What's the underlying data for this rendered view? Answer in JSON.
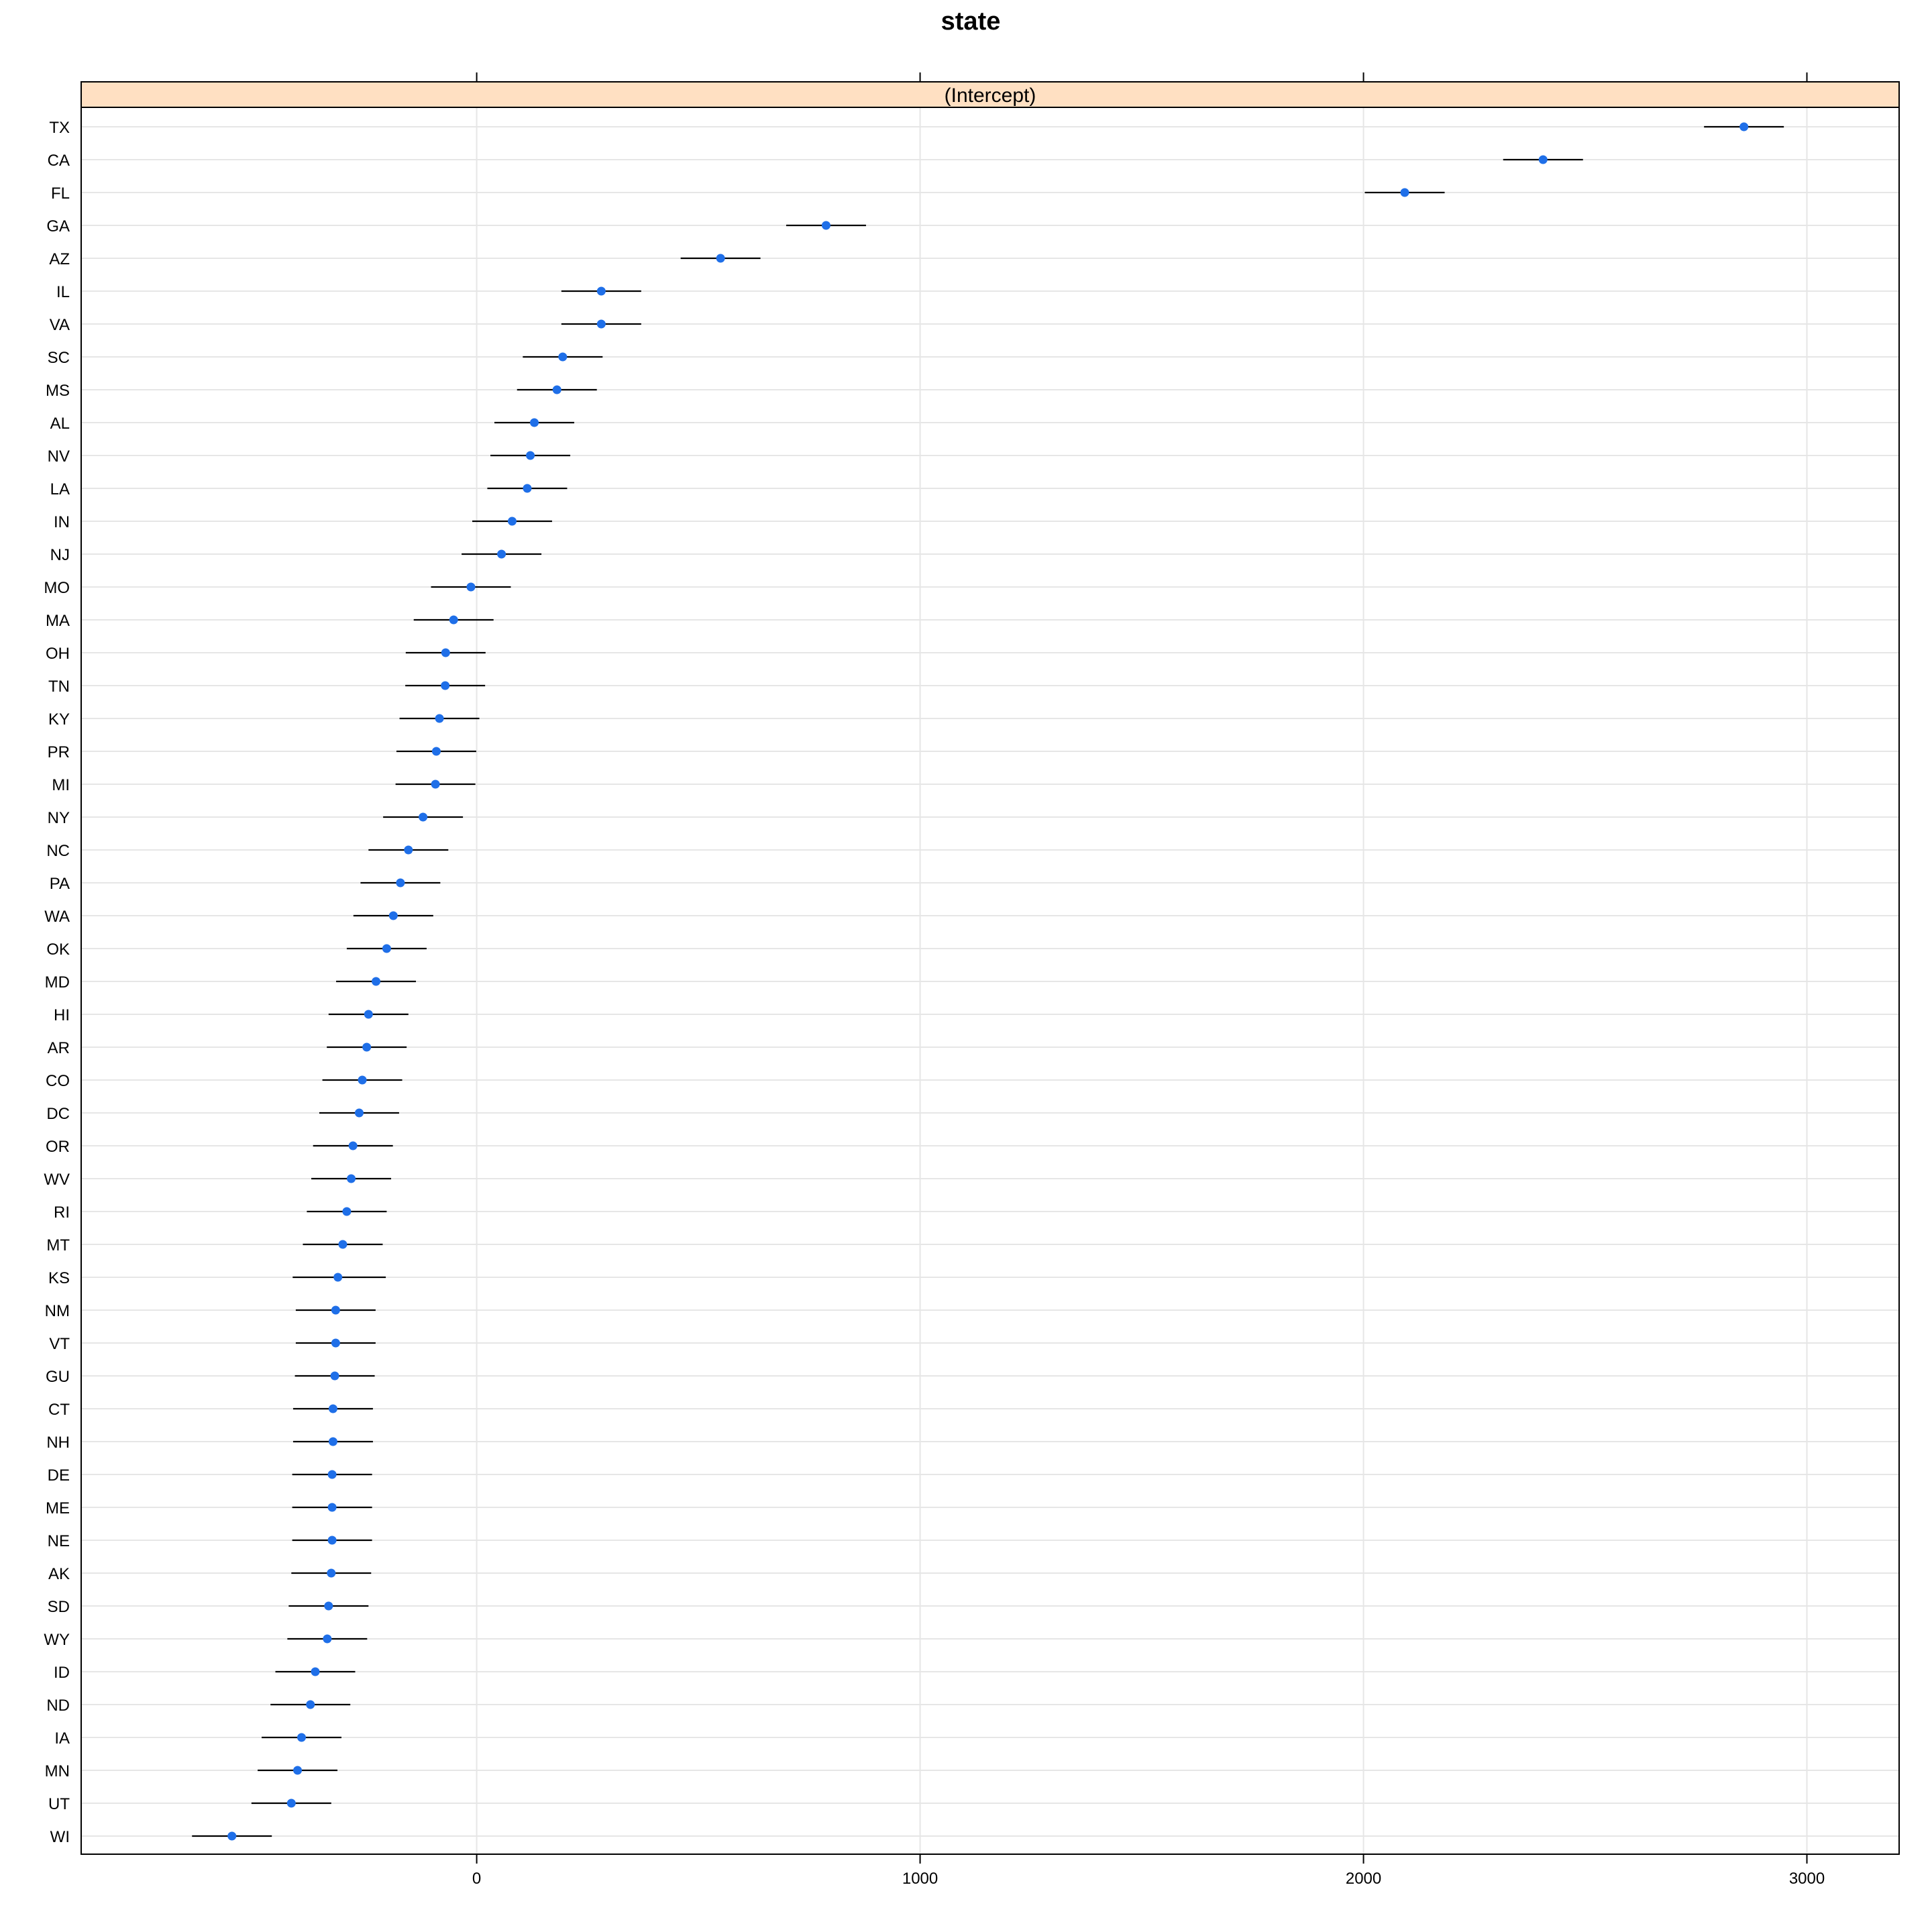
{
  "chart_data": {
    "type": "scatter",
    "title": "state",
    "panel_label": "(Intercept)",
    "xlabel": "",
    "ylabel": "",
    "xlim": [
      -892,
      3208
    ],
    "x_ticks": [
      0,
      1000,
      2000,
      3000
    ],
    "x_tick_labels": [
      "0",
      "1000",
      "2000",
      "3000"
    ],
    "grid": true,
    "colors": {
      "point": "#1f6fe8",
      "interval": "#000000",
      "grid": "#e6e6e6",
      "strip_fill": "#ffe0c2",
      "frame": "#000000"
    },
    "categories": [
      "TX",
      "CA",
      "FL",
      "GA",
      "AZ",
      "IL",
      "VA",
      "SC",
      "MS",
      "AL",
      "NV",
      "LA",
      "IN",
      "NJ",
      "MO",
      "MA",
      "OH",
      "TN",
      "KY",
      "PR",
      "MI",
      "NY",
      "NC",
      "PA",
      "WA",
      "OK",
      "MD",
      "HI",
      "AR",
      "CO",
      "DC",
      "OR",
      "WV",
      "RI",
      "MT",
      "KS",
      "NM",
      "VT",
      "GU",
      "CT",
      "NH",
      "DE",
      "ME",
      "NE",
      "AK",
      "SD",
      "WY",
      "ID",
      "ND",
      "IA",
      "MN",
      "UT",
      "WI"
    ],
    "values": [
      2858,
      2405,
      2093,
      788,
      550,
      281,
      281,
      194,
      181,
      130,
      121,
      114,
      80,
      56,
      -13,
      -52,
      -70,
      -71,
      -84,
      -91,
      -93,
      -121,
      -154,
      -172,
      -188,
      -203,
      -227,
      -244,
      -248,
      -258,
      -265,
      -279,
      -283,
      -293,
      -302,
      -313,
      -318,
      -318,
      -320,
      -324,
      -324,
      -326,
      -326,
      -326,
      -328,
      -334,
      -337,
      -364,
      -375,
      -395,
      -404,
      -418,
      -552
    ],
    "lower": [
      2768,
      2315,
      2003,
      698,
      460,
      191,
      191,
      104,
      91,
      40,
      31,
      24,
      -10,
      -34,
      -103,
      -142,
      -160,
      -161,
      -174,
      -181,
      -183,
      -211,
      -244,
      -262,
      -278,
      -293,
      -317,
      -334,
      -338,
      -348,
      -355,
      -369,
      -373,
      -383,
      -392,
      -415,
      -408,
      -408,
      -410,
      -414,
      -414,
      -416,
      -416,
      -416,
      -418,
      -424,
      -427,
      -454,
      -465,
      -485,
      -494,
      -508,
      -642
    ],
    "upper": [
      2948,
      2495,
      2183,
      878,
      640,
      371,
      371,
      284,
      271,
      220,
      211,
      204,
      170,
      146,
      77,
      38,
      20,
      19,
      6,
      -1,
      -3,
      -31,
      -64,
      -82,
      -98,
      -113,
      -137,
      -154,
      -158,
      -168,
      -175,
      -189,
      -193,
      -203,
      -212,
      -205,
      -228,
      -228,
      -230,
      -234,
      -234,
      -236,
      -236,
      -236,
      -238,
      -244,
      -247,
      -274,
      -285,
      -305,
      -314,
      -328,
      -462
    ]
  }
}
